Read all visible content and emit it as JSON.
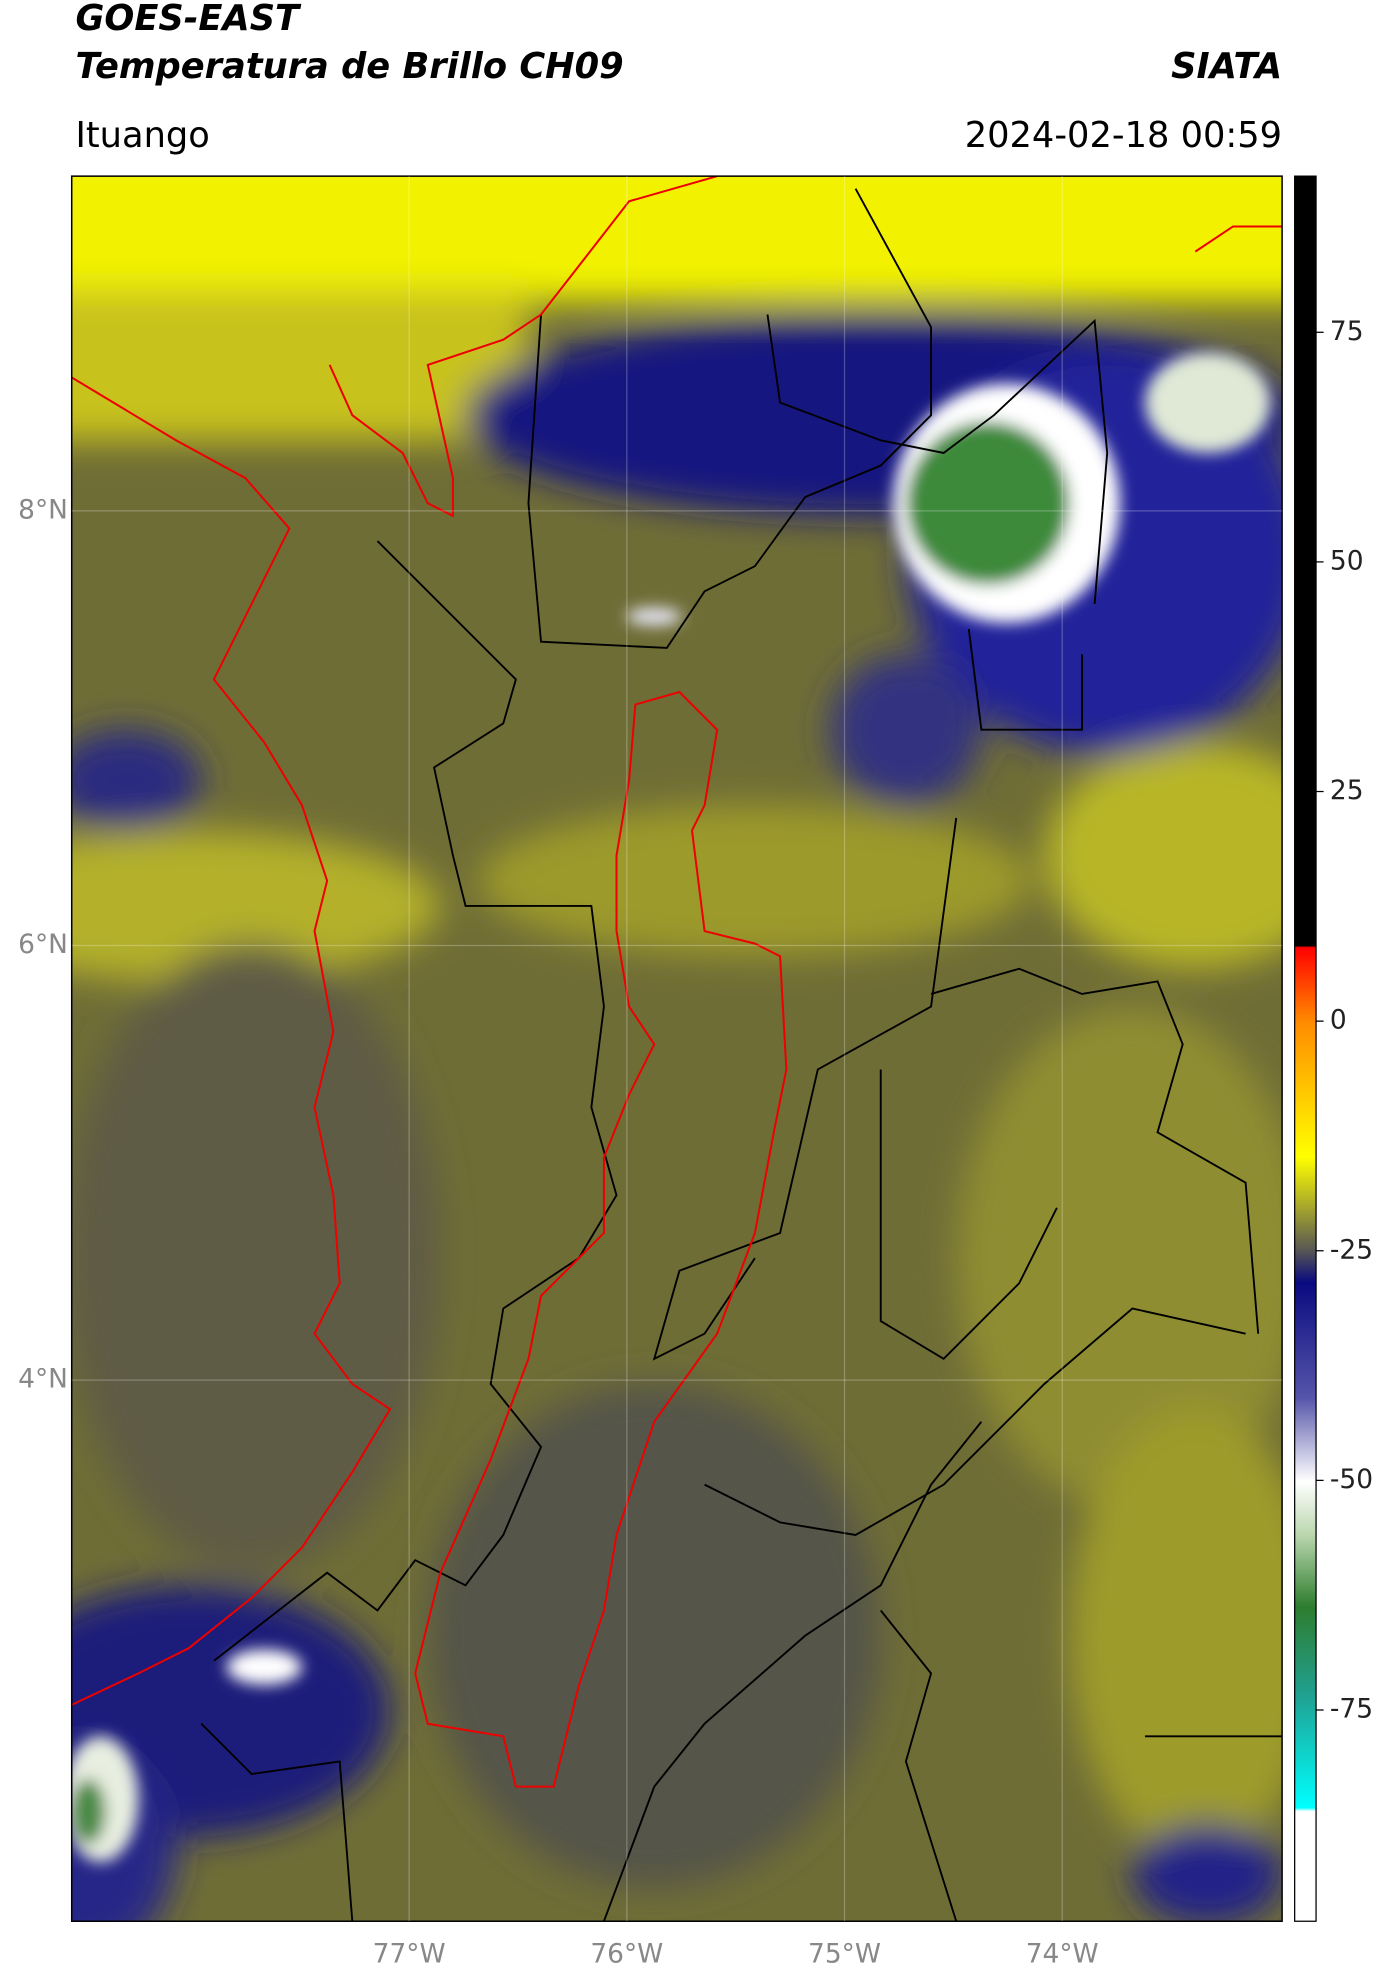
{
  "header": {
    "title": "GOES-EAST",
    "subtitle": "Temperatura de Brillo CH09",
    "org": "SIATA",
    "location": "Ituango",
    "datetime": "2024-02-18 00:59"
  },
  "map": {
    "xlim": [
      -78.55,
      -72.99
    ],
    "ylim": [
      1.51,
      9.54
    ],
    "xticks": [
      {
        "value": -77,
        "label": "77°W"
      },
      {
        "value": -76,
        "label": "76°W"
      },
      {
        "value": -75,
        "label": "75°W"
      },
      {
        "value": -74,
        "label": "74°W"
      }
    ],
    "yticks": [
      {
        "value": 8,
        "label": "8°N"
      },
      {
        "value": 6,
        "label": "6°N"
      },
      {
        "value": 4,
        "label": "4°N"
      }
    ]
  },
  "colorbar": {
    "lim": [
      -98,
      92
    ],
    "ticks": [
      75,
      50,
      25,
      0,
      -25,
      -50,
      -75
    ]
  }
}
